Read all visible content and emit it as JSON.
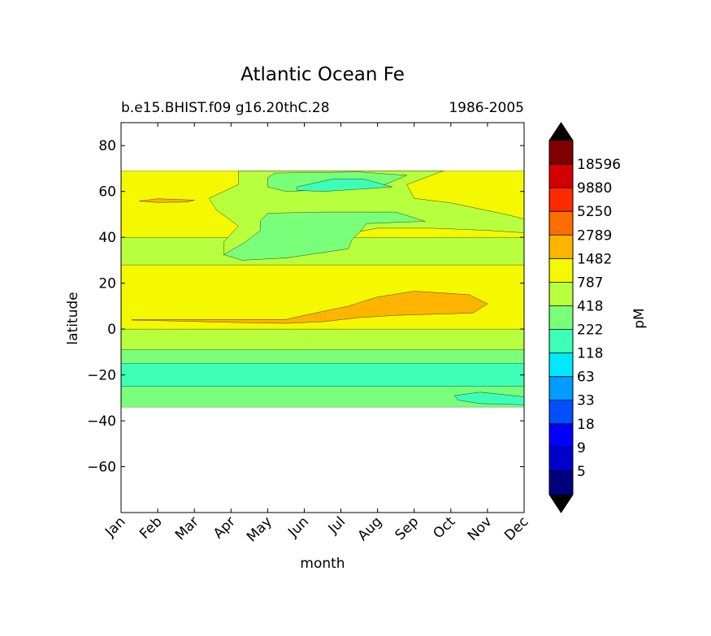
{
  "chart_data": {
    "type": "heatmap",
    "title": "Atlantic Ocean Fe",
    "subtitle_left": "b.e15.BHIST.f09 g16.20thC.28",
    "subtitle_right": "1986-2005",
    "xlabel": "month",
    "ylabel": "latitude",
    "x_ticks": [
      "Jan",
      "Feb",
      "Mar",
      "Apr",
      "May",
      "Jun",
      "Jul",
      "Aug",
      "Sep",
      "Oct",
      "Nov",
      "Dec"
    ],
    "xlim": [
      0,
      11
    ],
    "ylim": [
      -80,
      90
    ],
    "y_ticks": [
      80,
      60,
      40,
      20,
      0,
      -20,
      -40,
      -60
    ],
    "y_tick_labels": [
      "80",
      "60",
      "40",
      "20",
      "0",
      "−20",
      "−40",
      "−60"
    ],
    "data_lat_range": [
      -34,
      69
    ],
    "colorbar": {
      "label": "pM",
      "extend": "both",
      "labels": [
        "5",
        "9",
        "18",
        "33",
        "63",
        "118",
        "222",
        "418",
        "787",
        "1482",
        "2789",
        "5250",
        "9880",
        "18596"
      ],
      "colors": [
        "#00007f",
        "#0000cd",
        "#0000ff",
        "#0050ff",
        "#009cff",
        "#00e8ff",
        "#3effb8",
        "#7aff7a",
        "#b8ff3e",
        "#f4f800",
        "#ffb400",
        "#ff6c00",
        "#ff2800",
        "#d40000",
        "#7f0000"
      ],
      "under_color": "#000000",
      "over_color": "#000000"
    },
    "bands": [
      {
        "lat_min": -34,
        "lat_max": -25,
        "color": "#7aff7a"
      },
      {
        "lat_min": -25,
        "lat_max": -15,
        "color": "#3effb8"
      },
      {
        "lat_min": -15,
        "lat_max": -9,
        "color": "#7aff7a"
      },
      {
        "lat_min": -9,
        "lat_max": 0,
        "color": "#b8ff3e"
      },
      {
        "lat_min": 0,
        "lat_max": 28,
        "color": "#f4f800"
      },
      {
        "lat_min": 28,
        "lat_max": 40,
        "color": "#b8ff3e"
      },
      {
        "lat_min": 40,
        "lat_max": 69,
        "color": "#f4f800"
      }
    ],
    "regions": [
      {
        "name": "orange-equatorial",
        "color": "#ffb400",
        "points": [
          [
            0.3,
            4.2
          ],
          [
            3,
            4.2
          ],
          [
            4.5,
            4.2
          ],
          [
            5,
            6
          ],
          [
            6.2,
            10
          ],
          [
            7,
            14
          ],
          [
            8,
            16.5
          ],
          [
            9.5,
            15
          ],
          [
            10,
            11
          ],
          [
            9.6,
            7
          ],
          [
            7.5,
            6
          ],
          [
            6.5,
            5
          ],
          [
            5.5,
            3.2
          ],
          [
            4.5,
            2.5
          ],
          [
            3,
            2.9
          ],
          [
            1.5,
            3.5
          ],
          [
            0.3,
            3.9
          ]
        ]
      },
      {
        "name": "green-midlat-outer",
        "color": "#b8ff3e",
        "points": [
          [
            3.2,
            69
          ],
          [
            8.8,
            69
          ],
          [
            7.8,
            63
          ],
          [
            8,
            57
          ],
          [
            9,
            55
          ],
          [
            10.5,
            50
          ],
          [
            11,
            48
          ],
          [
            11,
            42
          ],
          [
            10,
            43
          ],
          [
            8.5,
            44
          ],
          [
            7,
            44
          ],
          [
            6,
            41
          ],
          [
            5.5,
            34
          ],
          [
            4.5,
            31
          ],
          [
            3.5,
            31
          ],
          [
            2.8,
            32.5
          ],
          [
            2.8,
            38
          ],
          [
            3.2,
            45
          ],
          [
            2.6,
            52
          ],
          [
            2.4,
            57
          ],
          [
            3.2,
            63
          ]
        ]
      },
      {
        "name": "green-midlat-inner",
        "color": "#7aff7a",
        "points": [
          [
            2.8,
            32.5
          ],
          [
            3.3,
            30
          ],
          [
            4.5,
            31
          ],
          [
            6.2,
            35
          ],
          [
            6.3,
            39
          ],
          [
            6.5,
            42
          ],
          [
            6.7,
            46
          ],
          [
            8.3,
            47
          ],
          [
            7.5,
            51
          ],
          [
            5.5,
            51
          ],
          [
            4,
            50.5
          ],
          [
            3.8,
            47
          ],
          [
            3.8,
            43
          ],
          [
            3.4,
            38
          ]
        ]
      },
      {
        "name": "green-north-patch",
        "color": "#7aff7a",
        "points": [
          [
            4.2,
            68
          ],
          [
            6.5,
            68.5
          ],
          [
            7.8,
            67
          ],
          [
            7.2,
            63
          ],
          [
            6,
            61
          ],
          [
            4.5,
            60
          ],
          [
            4,
            62
          ],
          [
            4,
            66
          ]
        ]
      },
      {
        "name": "teal-north-patch",
        "color": "#3effb8",
        "points": [
          [
            4.8,
            62
          ],
          [
            5.8,
            65.5
          ],
          [
            6.6,
            65.5
          ],
          [
            7.4,
            62
          ],
          [
            6.5,
            61
          ],
          [
            5.5,
            60
          ],
          [
            4.8,
            60.5
          ]
        ]
      },
      {
        "name": "orange-north-strip",
        "color": "#ffb400",
        "points": [
          [
            0.5,
            55.8
          ],
          [
            1,
            56.8
          ],
          [
            2,
            56.2
          ],
          [
            1.8,
            55.4
          ],
          [
            1,
            55.2
          ]
        ]
      },
      {
        "name": "teal-south-patch",
        "color": "#3effb8",
        "points": [
          [
            9.1,
            -29
          ],
          [
            9.8,
            -27.5
          ],
          [
            11,
            -29.5
          ],
          [
            11,
            -33
          ],
          [
            9.8,
            -32.5
          ],
          [
            9.2,
            -31
          ]
        ]
      }
    ]
  }
}
